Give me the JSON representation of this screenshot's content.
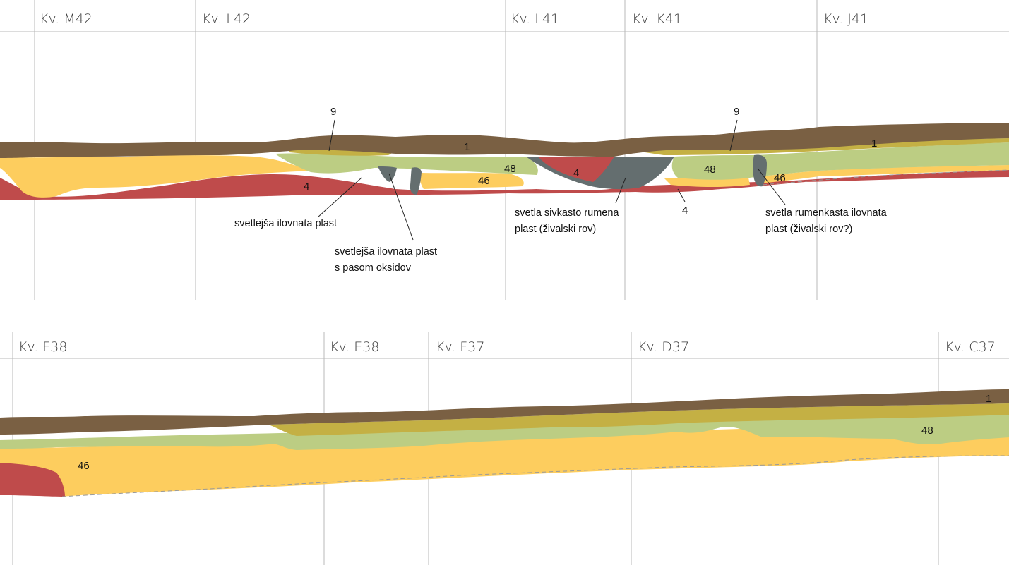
{
  "panels": [
    {
      "squares": [
        "Kv. M42",
        "Kv. L42",
        "Kv. L41",
        "Kv. K41",
        "Kv. J41"
      ],
      "layer_labels": [
        "9",
        "1",
        "4",
        "48",
        "46",
        "48",
        "4",
        "9",
        "1",
        "48",
        "46",
        "4"
      ],
      "annotations": [
        "svetlejša ilovnata plast",
        "svetlejša ilovnata plast",
        "s pasom oksidov",
        "svetla sivkasto rumena",
        "plast (živalski rov)",
        "svetla rumenkasta ilovnata",
        "plast (živalski rov?)"
      ]
    },
    {
      "squares": [
        "Kv. F38",
        "Kv. E38",
        "Kv. F37",
        "Kv. D37",
        "Kv. C37"
      ],
      "layer_labels": [
        "1",
        "48",
        "46"
      ]
    }
  ],
  "colors": {
    "layer_1": "#7a6043",
    "layer_9": "#c4b044",
    "layer_48": "#bccd83",
    "layer_46": "#fdcd5e",
    "layer_4": "#bf4b4b",
    "burrow": "#646e6f",
    "grid": "#b9b9b9"
  }
}
